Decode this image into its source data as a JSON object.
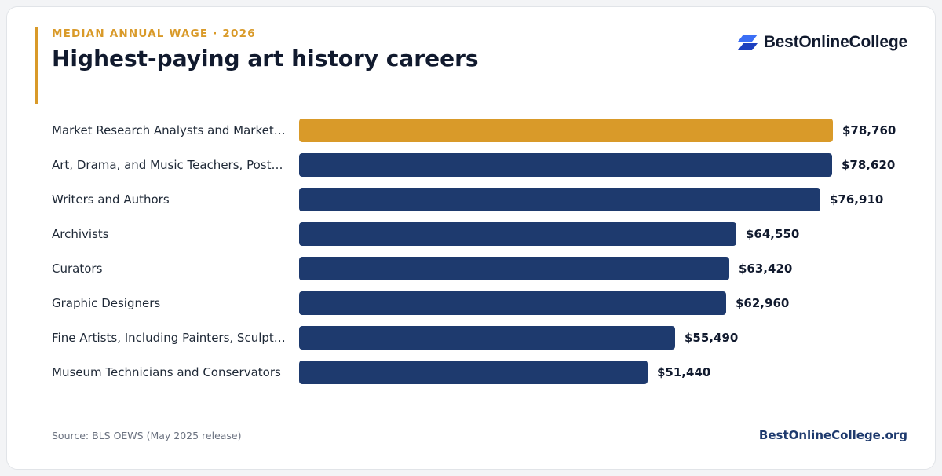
{
  "header": {
    "eyebrow": "MEDIAN ANNUAL WAGE · 2026",
    "title": "Highest-paying art history careers"
  },
  "brand": {
    "name": "BestOnlineCollege",
    "icon": "bestonlinecollege-logo-icon"
  },
  "colors": {
    "accent": "#d99a29",
    "bar_default": "#1e3a6e",
    "bar_highlight": "#d99a29",
    "brand_icon_light": "#3b6ef5",
    "brand_icon_dark": "#1c3fbf"
  },
  "chart_data": {
    "type": "bar",
    "orientation": "horizontal",
    "categories": [
      "Market Research Analysts and Marketing Specialists",
      "Art, Drama, and Music Teachers, Postsecondary",
      "Writers and Authors",
      "Archivists",
      "Curators",
      "Graphic Designers",
      "Fine Artists, Including Painters, Sculptors, and Illustrators",
      "Museum Technicians and Conservators"
    ],
    "display_labels": [
      "Market Research Analysts and Market…",
      "Art, Drama, and Music Teachers, Post…",
      "Writers and Authors",
      "Archivists",
      "Curators",
      "Graphic Designers",
      "Fine Artists, Including Painters, Sculpt…",
      "Museum Technicians and Conservators"
    ],
    "values": [
      78760,
      78620,
      76910,
      64550,
      63420,
      62960,
      55490,
      51440
    ],
    "value_labels": [
      "$78,760",
      "$78,620",
      "$76,910",
      "$64,550",
      "$63,420",
      "$62,960",
      "$55,490",
      "$51,440"
    ],
    "highlight_index": 0,
    "title": "Highest-paying art history careers",
    "xlabel": "",
    "ylabel": "",
    "xlim": [
      0,
      78760
    ],
    "grid": false,
    "legend": "none"
  },
  "footer": {
    "source": "Source: BLS OEWS (May 2025 release)",
    "site": "BestOnlineCollege.org"
  }
}
